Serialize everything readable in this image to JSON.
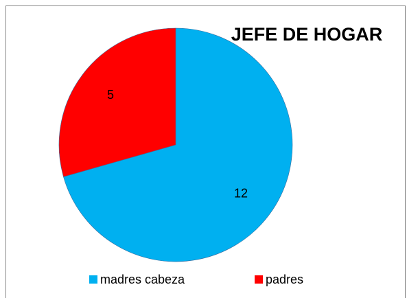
{
  "chart_data": {
    "type": "pie",
    "title": "JEFE DE HOGAR",
    "categories": [
      "madres cabeza",
      "padres"
    ],
    "values": [
      12,
      5
    ],
    "colors": [
      "#00b0f0",
      "#ff0000"
    ]
  }
}
